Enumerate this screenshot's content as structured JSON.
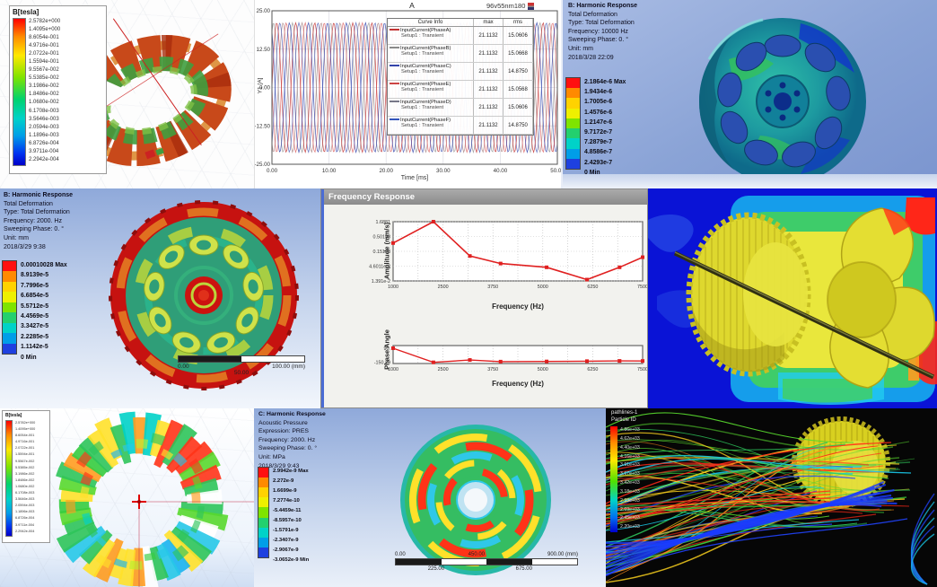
{
  "colors": {
    "legend_band_colors": [
      "#ff1010",
      "#ff8a00",
      "#ffd200",
      "#eef000",
      "#7fe400",
      "#23d06e",
      "#00d2c8",
      "#009ee8",
      "#1e40e0"
    ],
    "curve_line_red": "#e02020",
    "cfd_background": "#0a13d6",
    "streamline_palette": [
      "#2ec45a",
      "#2ec45a",
      "#3cd33c",
      "#58d82e",
      "#ffd51e",
      "#ffd51e",
      "#ff8c1a",
      "#ff2a1a",
      "#19c8e8",
      "#2244ff"
    ],
    "pathline_blue": "#1a3bff",
    "ansys_blue_top": "#8fa9da"
  },
  "maxwell_top": {
    "legend_title": "B[tesla]",
    "legend_values": [
      "2.5782e+000",
      "1.4095e+000",
      "8.6054e-001",
      "4.9716e-001",
      "2.0722e-001",
      "1.5594e-001",
      "9.5567e-002",
      "5.5385e-002",
      "3.1986e-002",
      "1.8486e-002",
      "1.0680e-002",
      "6.1708e-003",
      "3.5646e-003",
      "2.0594e-003",
      "1.1896e-003",
      "6.8726e-004",
      "3.9711e-004",
      "2.2942e-004"
    ]
  },
  "current_plot": {
    "title": "A",
    "model_name": "96v55nm180",
    "y_axis_label": "Y1 [A]",
    "x_axis_label": "Time [ms]",
    "y_ticks": [
      "25.00",
      "12.50",
      "0.00",
      "-12.50",
      "-25.00"
    ],
    "x_ticks": [
      "0.00",
      "10.00",
      "20.00",
      "30.00",
      "40.00",
      "50.00"
    ],
    "legend_header": {
      "curve": "Curve Info",
      "max": "max",
      "rms": "rms"
    },
    "legend_rows": [
      {
        "name": "InputCurrent(PhaseA)",
        "setup": "Setup1 : Transient",
        "max": "21.1132",
        "rms": "15.0606",
        "color": "#c23333"
      },
      {
        "name": "InputCurrent(PhaseB)",
        "setup": "Setup1 : Transient",
        "max": "21.1132",
        "rms": "15.0668",
        "color": "#8a8a8a"
      },
      {
        "name": "InputCurrent(PhaseC)",
        "setup": "Setup1 : Transient",
        "max": "21.1132",
        "rms": "14.8750",
        "color": "#3344aa"
      },
      {
        "name": "InputCurrent(PhaseE)",
        "setup": "Setup1 : Transient",
        "max": "21.1132",
        "rms": "15.0568",
        "color": "#cc4444"
      },
      {
        "name": "InputCurrent(PhaseD)",
        "setup": "Setup1 : Transient",
        "max": "21.1132",
        "rms": "15.0606",
        "color": "#777788"
      },
      {
        "name": "InputCurrent(PhaseF)",
        "setup": "Setup1 : Transient",
        "max": "21.1132",
        "rms": "14.8750",
        "color": "#3355bb"
      }
    ],
    "wave": {
      "amplitude": 21.1,
      "cycles": 15,
      "t_max_ms": 50,
      "y_limit": 25,
      "phase_colors": [
        "#c23333",
        "#999999",
        "#3344aa",
        "#dd6666",
        "#aa8888",
        "#5566bb"
      ]
    }
  },
  "harmonic_10000": {
    "lines": [
      "B: Harmonic Response",
      "Total Deformation",
      "Type: Total Deformation",
      "Frequency: 10000 Hz",
      "Sweeping Phase: 0. °",
      "Unit: mm",
      "2018/3/28 22:09"
    ],
    "legend_values": [
      "2.1864e-6 Max",
      "1.9434e-6",
      "1.7005e-6",
      "1.4576e-6",
      "1.2147e-6",
      "9.7172e-7",
      "7.2879e-7",
      "4.8586e-7",
      "2.4293e-7",
      "0 Min"
    ]
  },
  "harmonic_2000": {
    "lines": [
      "B: Harmonic Response",
      "Total Deformation",
      "Type: Total Deformation",
      "Frequency: 2000. Hz",
      "Sweeping Phase: 0. °",
      "Unit: mm",
      "2018/3/29 9:38"
    ],
    "legend_values": [
      "0.00010028 Max",
      "8.9139e-5",
      "7.7996e-5",
      "6.6854e-5",
      "5.5712e-5",
      "4.4569e-5",
      "3.3427e-5",
      "2.2285e-5",
      "1.1142e-5",
      "0 Min"
    ],
    "scale_bar": {
      "left": "0.00",
      "mid": "50.00",
      "right": "100.00 (mm)"
    }
  },
  "frequency_response": {
    "window_title": "Frequency Response",
    "amp": {
      "y_label": "Amplitude (mm/s)",
      "x_label": "Frequency (Hz)",
      "y_ticks": [
        "1.6881",
        "0.50198",
        "0.15198",
        "4.6011e-2",
        "1.391e-2"
      ],
      "x_ticks": [
        "1000",
        "2500",
        "3750",
        "5000",
        "6250",
        "7500"
      ],
      "points_hz": [
        1000,
        2050,
        3000,
        3800,
        5000,
        6050,
        6900,
        7500
      ],
      "points_mm_s": [
        0.3,
        1.6881,
        0.105,
        0.057,
        0.042,
        0.0155,
        0.042,
        0.095
      ]
    },
    "phase": {
      "y_label": "Phase Angle",
      "x_label": "Frequency (Hz)",
      "y_ticks": [
        "90.",
        "-150.29"
      ],
      "x_ticks": [
        "1000",
        "2500",
        "3750",
        "5000",
        "6250",
        "7500"
      ],
      "points_hz": [
        1000,
        2050,
        3000,
        3800,
        5000,
        6050,
        6900,
        7500
      ],
      "points_deg": [
        90,
        -150,
        -110,
        -138,
        -135,
        -130,
        -126,
        -127
      ]
    }
  },
  "acoustic": {
    "lines": [
      "C: Harmonic Response",
      "Acoustic Pressure",
      "Expression: PRES",
      "Frequency: 2000. Hz",
      "Sweeping Phase: 0. °",
      "Unit: MPa",
      "2018/3/29 9:43"
    ],
    "legend_values": [
      "2.9942e-9 Max",
      "2.272e-9",
      "1.6699e-9",
      "7.2774e-10",
      "-5.4459e-11",
      "-8.5957e-10",
      "-1.5791e-9",
      "-2.3407e-9",
      "-2.9067e-9",
      "-3.0652e-9 Min"
    ],
    "scale_bar": {
      "row1": [
        "0.00",
        "450.00",
        "900.00 (mm)"
      ],
      "row2": [
        "225.00",
        "675.00"
      ]
    }
  },
  "maxwell_bottom": {
    "legend_title": "B[tesla]",
    "legend_values": [
      "2.5782e+000",
      "1.4095e+000",
      "8.6054e-001",
      "4.9716e-001",
      "2.0722e-001",
      "1.5594e-001",
      "9.5567e-002",
      "5.5385e-002",
      "3.1986e-002",
      "1.8486e-002",
      "1.0680e-002",
      "6.1708e-003",
      "3.5646e-003",
      "2.0594e-003",
      "1.1896e-003",
      "6.8726e-004",
      "3.9711e-004",
      "2.2942e-004"
    ]
  },
  "pathlines": {
    "title_lines": [
      "pathlines-1",
      "Particle ID"
    ],
    "legend_values": [
      "4.86e+03",
      "4.62e+03",
      "4.40e+03",
      "4.16e+03",
      "3.91e+03",
      "3.67e+03",
      "3.42e+03",
      "3.18e+03",
      "2.93e+03",
      "2.69e+03",
      "2.45e+03",
      "2.20e+03"
    ]
  },
  "chart_data": [
    {
      "type": "line",
      "title": "A — 96v55nm180",
      "xlabel": "Time [ms]",
      "ylabel": "Y1 [A]",
      "x_range": [
        0,
        50
      ],
      "ylim": [
        -25,
        25
      ],
      "x_ticks": [
        0,
        10,
        20,
        30,
        40,
        50
      ],
      "y_ticks": [
        -25,
        -12.5,
        0,
        12.5,
        25
      ],
      "series": [
        {
          "name": "InputCurrent(PhaseA)",
          "max": 21.1132,
          "rms": 15.0606
        },
        {
          "name": "InputCurrent(PhaseB)",
          "max": 21.1132,
          "rms": 15.0668
        },
        {
          "name": "InputCurrent(PhaseC)",
          "max": 21.1132,
          "rms": 14.875
        },
        {
          "name": "InputCurrent(PhaseE)",
          "max": 21.1132,
          "rms": 15.0568
        },
        {
          "name": "InputCurrent(PhaseD)",
          "max": 21.1132,
          "rms": 15.0606
        },
        {
          "name": "InputCurrent(PhaseF)",
          "max": 21.1132,
          "rms": 14.875
        }
      ],
      "note": "six sinusoidal phase currents, amplitude ≈21.1 A, ≈15 cycles over 0–50 ms"
    },
    {
      "type": "line",
      "title": "Frequency Response — Amplitude",
      "xlabel": "Frequency (Hz)",
      "ylabel": "Amplitude (mm/s)",
      "yscale": "log",
      "x": [
        1000,
        2050,
        3000,
        3800,
        5000,
        6050,
        6900,
        7500
      ],
      "y": [
        0.3,
        1.6881,
        0.105,
        0.057,
        0.042,
        0.0155,
        0.042,
        0.095
      ],
      "y_ticks": [
        1.6881,
        0.50198,
        0.15198,
        0.046011,
        0.01391
      ],
      "legend_position": "none",
      "grid": true
    },
    {
      "type": "line",
      "title": "Frequency Response — Phase",
      "xlabel": "Frequency (Hz)",
      "ylabel": "Phase Angle",
      "x": [
        1000,
        2050,
        3000,
        3800,
        5000,
        6050,
        6900,
        7500
      ],
      "y": [
        90,
        -150,
        -110,
        -138,
        -135,
        -130,
        -126,
        -127
      ],
      "y_ticks": [
        90,
        -150.29
      ],
      "grid": true
    }
  ]
}
